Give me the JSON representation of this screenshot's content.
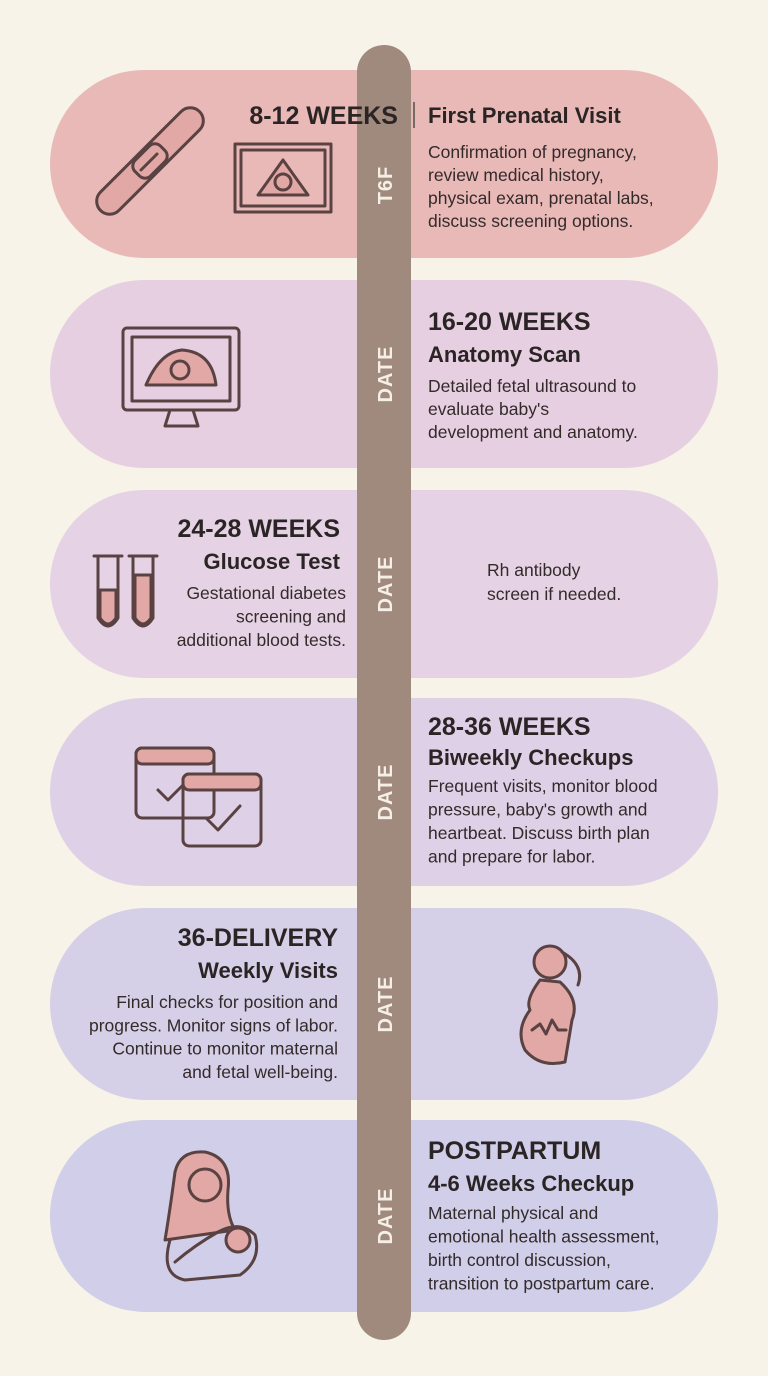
{
  "cards": [
    {
      "date": "T6F",
      "heading": "8-12 WEEKS",
      "title": "First Prenatal Visit",
      "description": [
        "Confirmation of pregnancy,",
        "review medical history,",
        "physical exam, prenatal labs,",
        "discuss screening options."
      ]
    },
    {
      "date": "DATE",
      "heading": "16-20 WEEKS",
      "title": "Anatomy Scan",
      "description": [
        "Detailed fetal ultrasound to",
        "evaluate baby's",
        "development and anatomy."
      ]
    },
    {
      "date": "DATE",
      "heading": "24-28 WEEKS",
      "title": "Glucose Test",
      "description": [
        "Gestational diabetes",
        "screening and",
        "additional blood tests."
      ],
      "note": [
        "Rh antibody",
        "screen if needed."
      ]
    },
    {
      "date": "DATE",
      "heading": "28-36 WEEKS",
      "title": "Biweekly Checkups",
      "description": [
        "Frequent visits, monitor blood",
        "pressure, baby's growth and",
        "heartbeat. Discuss birth plan",
        "and prepare for labor."
      ]
    },
    {
      "date": "DATE",
      "heading": "36-DELIVERY",
      "title": "Weekly Visits",
      "description": [
        "Final checks for position and",
        "progress. Monitor signs of labor.",
        "Continue to monitor maternal",
        "and fetal well-being."
      ]
    },
    {
      "date": "DATE",
      "heading": "POSTPARTUM",
      "title": "4-6 Weeks Checkup",
      "description": [
        "Maternal physical and",
        "emotional health assessment,",
        "birth control discussion,",
        "transition to postpartum care."
      ]
    }
  ]
}
